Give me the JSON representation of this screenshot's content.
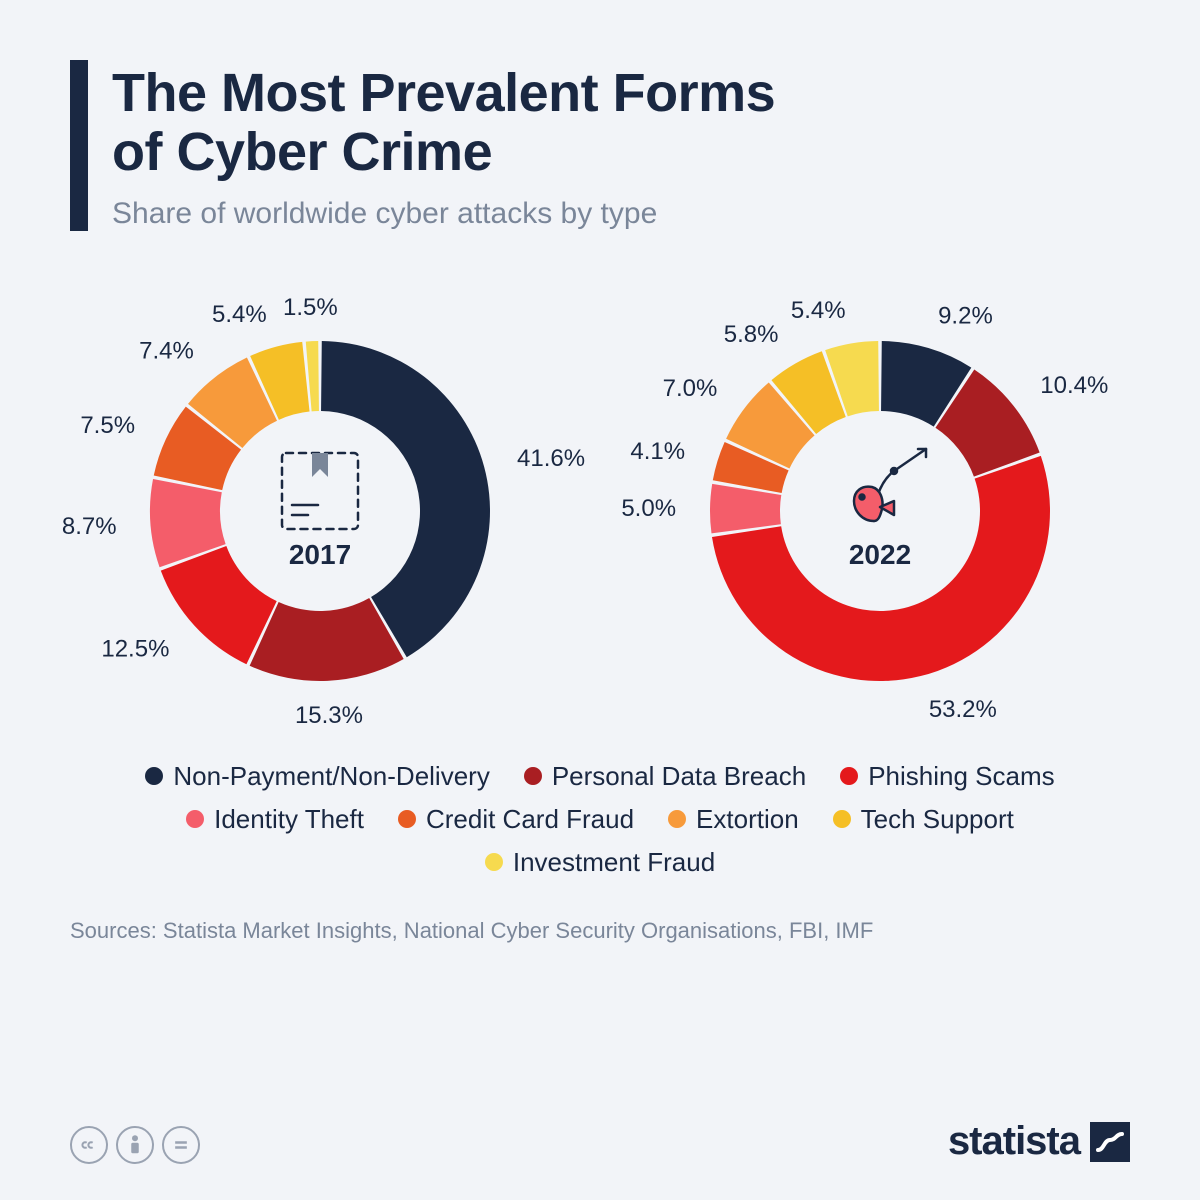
{
  "header": {
    "title_line1": "The Most Prevalent Forms",
    "title_line2": "of Cyber Crime",
    "subtitle": "Share of worldwide cyber attacks by type",
    "accent_color": "#1a2842"
  },
  "categories": [
    {
      "key": "non_payment",
      "label": "Non-Payment/Non-Delivery",
      "color": "#1a2842"
    },
    {
      "key": "personal_data",
      "label": "Personal Data Breach",
      "color": "#a91e22"
    },
    {
      "key": "phishing",
      "label": "Phishing Scams",
      "color": "#e4191c"
    },
    {
      "key": "identity",
      "label": "Identity Theft",
      "color": "#f45d6a"
    },
    {
      "key": "credit_card",
      "label": "Credit Card Fraud",
      "color": "#e85c23"
    },
    {
      "key": "extortion",
      "label": "Extortion",
      "color": "#f79a3b"
    },
    {
      "key": "tech_support",
      "label": "Tech Support",
      "color": "#f5bf26"
    },
    {
      "key": "investment",
      "label": "Investment Fraud",
      "color": "#f6da4f"
    }
  ],
  "charts": [
    {
      "year": "2017",
      "type": "donut",
      "inner_radius": 100,
      "outer_radius": 170,
      "center_icon": "package",
      "gap_deg": 1.2,
      "slices": [
        {
          "key": "non_payment",
          "value": 41.6,
          "label": "41.6%"
        },
        {
          "key": "personal_data",
          "value": 15.3,
          "label": "15.3%"
        },
        {
          "key": "phishing",
          "value": 12.5,
          "label": "12.5%"
        },
        {
          "key": "identity",
          "value": 8.7,
          "label": "8.7%"
        },
        {
          "key": "credit_card",
          "value": 7.5,
          "label": "7.5%"
        },
        {
          "key": "extortion",
          "value": 7.4,
          "label": "7.4%"
        },
        {
          "key": "tech_support",
          "value": 5.4,
          "label": "5.4%"
        },
        {
          "key": "investment",
          "value": 1.5,
          "label": "1.5%"
        }
      ]
    },
    {
      "year": "2022",
      "type": "donut",
      "inner_radius": 100,
      "outer_radius": 170,
      "center_icon": "phishing",
      "gap_deg": 1.2,
      "slices": [
        {
          "key": "non_payment",
          "value": 9.2,
          "label": "9.2%"
        },
        {
          "key": "personal_data",
          "value": 10.4,
          "label": "10.4%"
        },
        {
          "key": "phishing",
          "value": 53.2,
          "label": "53.2%"
        },
        {
          "key": "identity",
          "value": 5.0,
          "label": "5.0%"
        },
        {
          "key": "credit_card",
          "value": 4.1,
          "label": "4.1%"
        },
        {
          "key": "extortion",
          "value": 7.0,
          "label": "7.0%"
        },
        {
          "key": "tech_support",
          "value": 5.8,
          "label": "5.8%"
        },
        {
          "key": "investment",
          "value": 5.4,
          "label": "5.4%"
        }
      ]
    }
  ],
  "styling": {
    "background_color": "#f2f4f8",
    "title_fontsize": 54,
    "subtitle_fontsize": 30,
    "subtitle_color": "#7a8699",
    "legend_fontsize": 26,
    "label_fontsize": 24,
    "year_fontsize": 28,
    "icon_stroke": "#1a2842"
  },
  "sources": "Sources: Statista Market Insights, National Cyber Security Organisations, FBI, IMF",
  "footer": {
    "brand": "statista",
    "cc": [
      "cc",
      "by",
      "nd"
    ]
  }
}
